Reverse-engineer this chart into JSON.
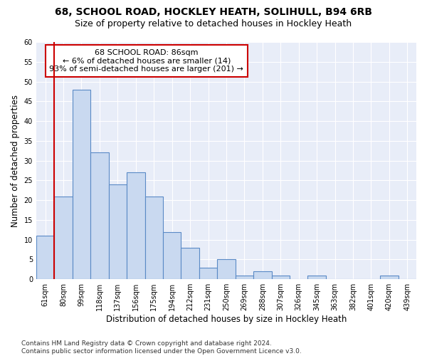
{
  "title": "68, SCHOOL ROAD, HOCKLEY HEATH, SOLIHULL, B94 6RB",
  "subtitle": "Size of property relative to detached houses in Hockley Heath",
  "xlabel": "Distribution of detached houses by size in Hockley Heath",
  "ylabel": "Number of detached properties",
  "categories": [
    "61sqm",
    "80sqm",
    "99sqm",
    "118sqm",
    "137sqm",
    "156sqm",
    "175sqm",
    "194sqm",
    "212sqm",
    "231sqm",
    "250sqm",
    "269sqm",
    "288sqm",
    "307sqm",
    "326sqm",
    "345sqm",
    "363sqm",
    "382sqm",
    "401sqm",
    "420sqm",
    "439sqm"
  ],
  "values": [
    11,
    21,
    48,
    32,
    24,
    27,
    21,
    12,
    8,
    3,
    5,
    1,
    2,
    1,
    0,
    1,
    0,
    0,
    0,
    1,
    0
  ],
  "bar_color": "#c9d9f0",
  "bar_edge_color": "#5a8ac6",
  "vline_x_idx": 1,
  "vline_color": "#cc0000",
  "annotation_text": "68 SCHOOL ROAD: 86sqm\n← 6% of detached houses are smaller (14)\n93% of semi-detached houses are larger (201) →",
  "annotation_box_color": "#ffffff",
  "annotation_box_edge": "#cc0000",
  "ylim": [
    0,
    60
  ],
  "yticks": [
    0,
    5,
    10,
    15,
    20,
    25,
    30,
    35,
    40,
    45,
    50,
    55,
    60
  ],
  "footnote": "Contains HM Land Registry data © Crown copyright and database right 2024.\nContains public sector information licensed under the Open Government Licence v3.0.",
  "background_color": "#e8edf8",
  "grid_color": "#ffffff",
  "title_fontsize": 10,
  "subtitle_fontsize": 9,
  "xlabel_fontsize": 8.5,
  "ylabel_fontsize": 8.5,
  "tick_fontsize": 7,
  "annotation_fontsize": 8,
  "footnote_fontsize": 6.5
}
